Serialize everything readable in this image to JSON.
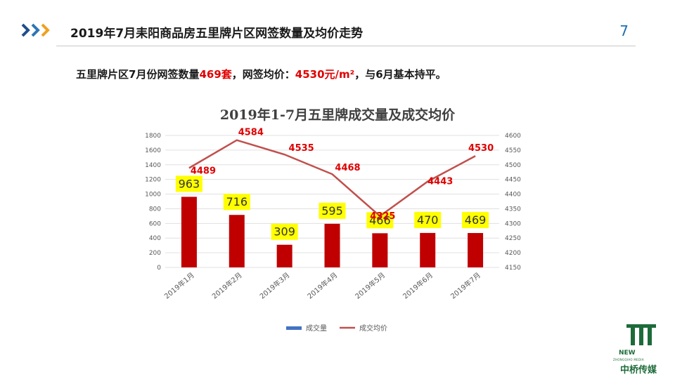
{
  "header": {
    "title": "2019年7月耒阳商品房五里牌片区网签数量及均价走势",
    "page_number": "7"
  },
  "summary": {
    "prefix": "五里牌片区7月份网签数量",
    "count": "469套",
    "mid": "，网签均价：",
    "price": "4530元/m²",
    "suffix": "，与6月基本持平。"
  },
  "chart_data": {
    "type": "bar",
    "title": "2019年1-7月五里牌成交量及成交均价",
    "categories": [
      "2019年1月",
      "2019年2月",
      "2019年3月",
      "2019年4月",
      "2019年5月",
      "2019年6月",
      "2019年7月"
    ],
    "series": [
      {
        "name": "成交量",
        "kind": "bar",
        "axis": "left",
        "values": [
          963,
          716,
          309,
          595,
          466,
          470,
          469
        ]
      },
      {
        "name": "成交均价",
        "kind": "line",
        "axis": "right",
        "values": [
          4489,
          4584,
          4535,
          4468,
          4325,
          4443,
          4530
        ]
      }
    ],
    "left_axis": {
      "ylim": [
        0,
        1800
      ],
      "ticks": [
        0,
        200,
        400,
        600,
        800,
        1000,
        1200,
        1400,
        1600,
        1800
      ]
    },
    "right_axis": {
      "ylim": [
        4150,
        4600
      ],
      "ticks": [
        4150,
        4200,
        4250,
        4300,
        4350,
        4400,
        4450,
        4500,
        4550,
        4600
      ]
    },
    "legend_position": "bottom",
    "colors": {
      "bar": "#c00000",
      "line": "#c0504d",
      "legend_bar": "#4472c4",
      "bar_label_bg": "#ffff00",
      "line_label": "#e00000"
    }
  },
  "logo": {
    "mark": "[]|",
    "name_en": "NEW",
    "sub_en": "ZHONGQIAO MEDIA",
    "name_cn": "中桥传媒"
  }
}
